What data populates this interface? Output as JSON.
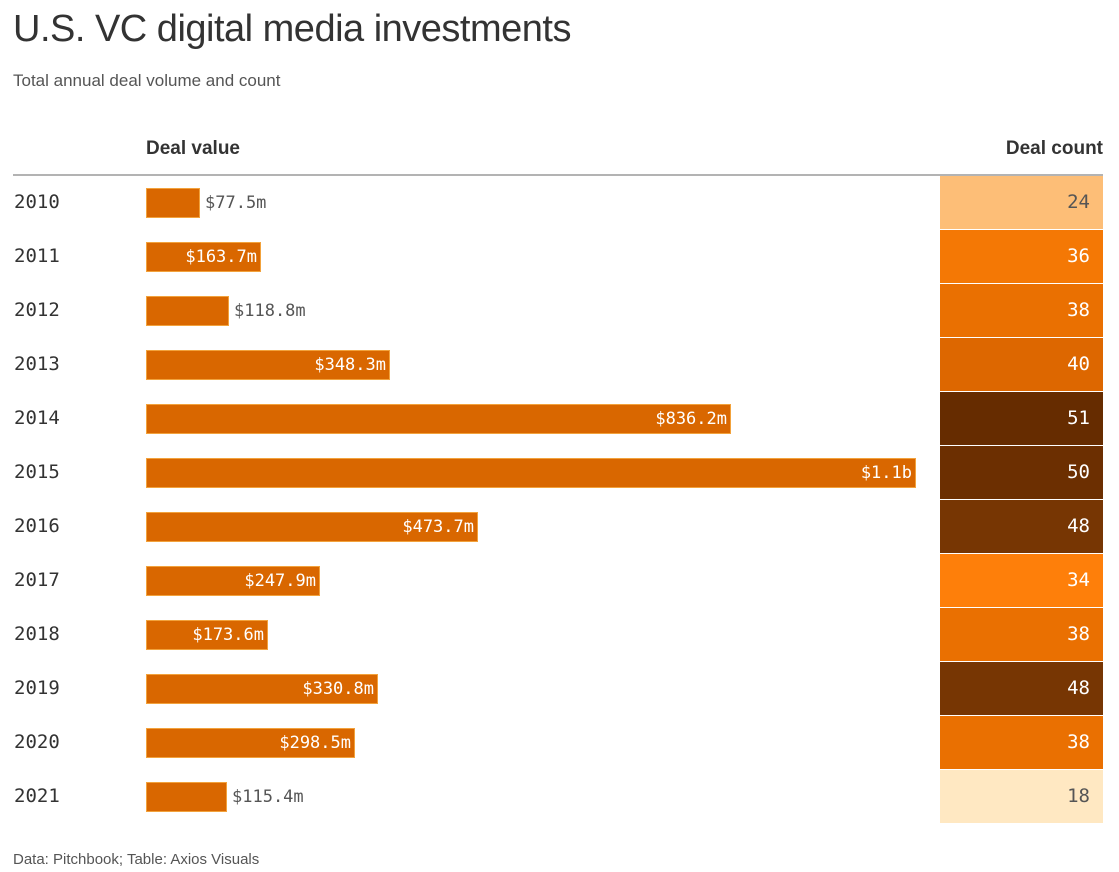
{
  "title": "U.S. VC digital media investments",
  "subtitle": "Total annual deal volume and count",
  "columns": {
    "value": "Deal value",
    "count": "Deal count"
  },
  "source": "Data: Pitchbook; Table: Axios Visuals",
  "colors": {
    "bar": "#d96700",
    "bar_outline": "#f2a23c"
  },
  "chart_data": {
    "type": "table",
    "xmax": 1100,
    "unit": "millions USD",
    "rows": [
      {
        "year": "2010",
        "value": 77.5,
        "value_label": "$77.5m",
        "count": 24
      },
      {
        "year": "2011",
        "value": 163.7,
        "value_label": "$163.7m",
        "count": 36
      },
      {
        "year": "2012",
        "value": 118.8,
        "value_label": "$118.8m",
        "count": 38
      },
      {
        "year": "2013",
        "value": 348.3,
        "value_label": "$348.3m",
        "count": 40
      },
      {
        "year": "2014",
        "value": 836.2,
        "value_label": "$836.2m",
        "count": 51
      },
      {
        "year": "2015",
        "value": 1100,
        "value_label": "$1.1b",
        "count": 50
      },
      {
        "year": "2016",
        "value": 473.7,
        "value_label": "$473.7m",
        "count": 48
      },
      {
        "year": "2017",
        "value": 247.9,
        "value_label": "$247.9m",
        "count": 34
      },
      {
        "year": "2018",
        "value": 173.6,
        "value_label": "$173.6m",
        "count": 38
      },
      {
        "year": "2019",
        "value": 330.8,
        "value_label": "$330.8m",
        "count": 48
      },
      {
        "year": "2020",
        "value": 298.5,
        "value_label": "$298.5m",
        "count": 38
      },
      {
        "year": "2021",
        "value": 115.4,
        "value_label": "$115.4m",
        "count": 18
      }
    ]
  }
}
